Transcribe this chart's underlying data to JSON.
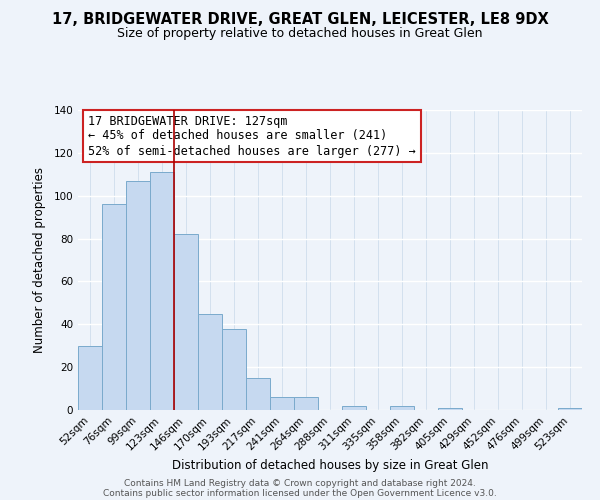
{
  "title": "17, BRIDGEWATER DRIVE, GREAT GLEN, LEICESTER, LE8 9DX",
  "subtitle": "Size of property relative to detached houses in Great Glen",
  "xlabel": "Distribution of detached houses by size in Great Glen",
  "ylabel": "Number of detached properties",
  "bar_labels": [
    "52sqm",
    "76sqm",
    "99sqm",
    "123sqm",
    "146sqm",
    "170sqm",
    "193sqm",
    "217sqm",
    "241sqm",
    "264sqm",
    "288sqm",
    "311sqm",
    "335sqm",
    "358sqm",
    "382sqm",
    "405sqm",
    "429sqm",
    "452sqm",
    "476sqm",
    "499sqm",
    "523sqm"
  ],
  "bar_values": [
    30,
    96,
    107,
    111,
    82,
    45,
    38,
    15,
    6,
    6,
    0,
    2,
    0,
    2,
    0,
    1,
    0,
    0,
    0,
    0,
    1
  ],
  "bar_color": "#c6d9f0",
  "bar_edge_color": "#7aaacc",
  "vline_color": "#aa0000",
  "vline_x_index": 3.5,
  "ylim": [
    0,
    140
  ],
  "yticks": [
    0,
    20,
    40,
    60,
    80,
    100,
    120,
    140
  ],
  "annotation_title": "17 BRIDGEWATER DRIVE: 127sqm",
  "annotation_line1": "← 45% of detached houses are smaller (241)",
  "annotation_line2": "52% of semi-detached houses are larger (277) →",
  "footer_line1": "Contains HM Land Registry data © Crown copyright and database right 2024.",
  "footer_line2": "Contains public sector information licensed under the Open Government Licence v3.0.",
  "bg_color": "#eef3fa",
  "grid_color": "#c8d8ea",
  "title_fontsize": 10.5,
  "subtitle_fontsize": 9.0,
  "axis_label_fontsize": 8.5,
  "tick_fontsize": 7.5,
  "annotation_fontsize": 8.5,
  "footer_fontsize": 6.5
}
